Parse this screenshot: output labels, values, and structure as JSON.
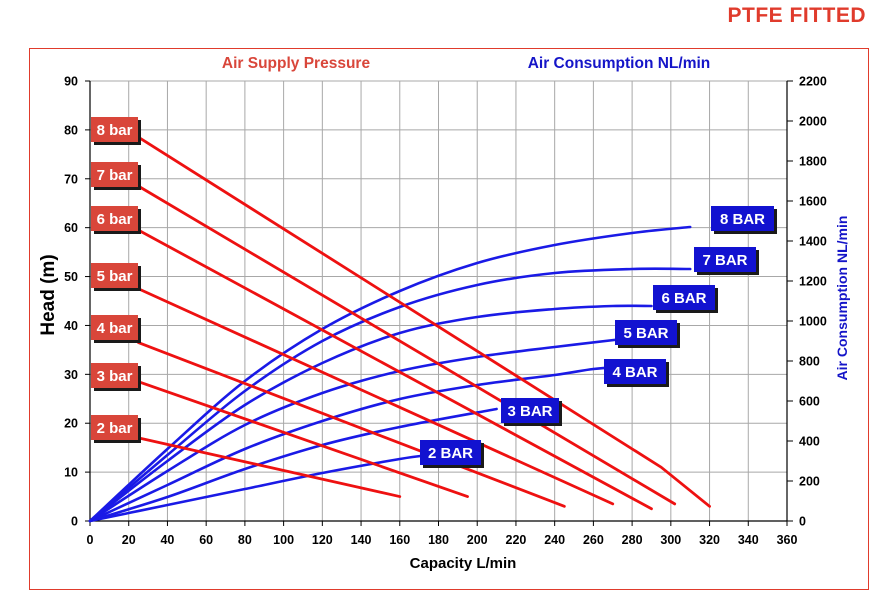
{
  "brand": "PTFE FITTED",
  "chart_data": {
    "type": "line",
    "title_left": "Air Supply Pressure",
    "title_right": "Air Consumption NL/min",
    "xlabel": "Capacity L/min",
    "ylabel_left": "Head (m)",
    "ylabel_right": "Air Consumption NL/min",
    "xlim": [
      0,
      360
    ],
    "ylim_left": [
      0,
      90
    ],
    "ylim_right": [
      0,
      2200
    ],
    "x_ticks": [
      "0",
      "20",
      "40",
      "60",
      "80",
      "100",
      "120",
      "140",
      "160",
      "180",
      "200",
      "220",
      "240",
      "260",
      "280",
      "300",
      "320",
      "340",
      "360"
    ],
    "y_ticks_left": [
      "0",
      "10",
      "20",
      "30",
      "40",
      "50",
      "60",
      "70",
      "80",
      "90"
    ],
    "y_ticks_right": [
      "0",
      "200",
      "400",
      "600",
      "800",
      "1000",
      "1200",
      "1400",
      "1600",
      "1800",
      "2000",
      "2200"
    ],
    "grid": true,
    "colors": {
      "pressure": "#ee1111",
      "consumption": "#1a1ae6",
      "pressure_label_bg": "#d9463a",
      "consumption_label_bg": "#1212d0",
      "brand": "#e03b2c"
    },
    "pressure_series": [
      {
        "name": "2 bar",
        "points": [
          [
            25,
            17
          ],
          [
            160,
            5
          ]
        ]
      },
      {
        "name": "3 bar",
        "points": [
          [
            25,
            28.5
          ],
          [
            195,
            5
          ]
        ]
      },
      {
        "name": "4 bar",
        "points": [
          [
            25,
            36.5
          ],
          [
            245,
            3
          ]
        ]
      },
      {
        "name": "5 bar",
        "points": [
          [
            25,
            47.5
          ],
          [
            270,
            3.5
          ]
        ]
      },
      {
        "name": "6 bar",
        "points": [
          [
            25,
            59.5
          ],
          [
            290,
            2.5
          ]
        ]
      },
      {
        "name": "7 bar",
        "points": [
          [
            25,
            68.5
          ],
          [
            302,
            3.5
          ]
        ]
      },
      {
        "name": "8 bar",
        "points": [
          [
            25,
            78.5
          ],
          [
            295,
            11
          ],
          [
            320,
            3
          ]
        ]
      }
    ],
    "consumption_series": [
      {
        "name": "2 BAR",
        "points": [
          [
            0,
            0
          ],
          [
            40,
            80
          ],
          [
            80,
            160
          ],
          [
            120,
            240
          ],
          [
            160,
            310
          ],
          [
            175,
            330
          ]
        ]
      },
      {
        "name": "3 BAR",
        "points": [
          [
            0,
            0
          ],
          [
            40,
            120
          ],
          [
            80,
            260
          ],
          [
            120,
            380
          ],
          [
            160,
            470
          ],
          [
            210,
            560
          ]
        ]
      },
      {
        "name": "4 BAR",
        "points": [
          [
            0,
            0
          ],
          [
            40,
            180
          ],
          [
            80,
            360
          ],
          [
            120,
            500
          ],
          [
            160,
            610
          ],
          [
            200,
            680
          ],
          [
            240,
            730
          ],
          [
            260,
            760
          ],
          [
            275,
            770
          ]
        ]
      },
      {
        "name": "5 BAR",
        "points": [
          [
            0,
            0
          ],
          [
            40,
            250
          ],
          [
            80,
            480
          ],
          [
            120,
            640
          ],
          [
            160,
            750
          ],
          [
            200,
            820
          ],
          [
            240,
            870
          ],
          [
            275,
            910
          ]
        ]
      },
      {
        "name": "6 BAR",
        "points": [
          [
            0,
            0
          ],
          [
            40,
            300
          ],
          [
            80,
            580
          ],
          [
            120,
            790
          ],
          [
            160,
            940
          ],
          [
            200,
            1020
          ],
          [
            240,
            1060
          ],
          [
            270,
            1075
          ],
          [
            290,
            1075
          ]
        ]
      },
      {
        "name": "7 BAR",
        "points": [
          [
            0,
            0
          ],
          [
            40,
            330
          ],
          [
            80,
            650
          ],
          [
            120,
            900
          ],
          [
            160,
            1070
          ],
          [
            200,
            1180
          ],
          [
            240,
            1240
          ],
          [
            280,
            1260
          ],
          [
            310,
            1260
          ]
        ]
      },
      {
        "name": "8 BAR",
        "points": [
          [
            0,
            0
          ],
          [
            40,
            360
          ],
          [
            80,
            700
          ],
          [
            120,
            960
          ],
          [
            160,
            1150
          ],
          [
            200,
            1290
          ],
          [
            240,
            1380
          ],
          [
            280,
            1440
          ],
          [
            310,
            1470
          ]
        ]
      }
    ]
  }
}
